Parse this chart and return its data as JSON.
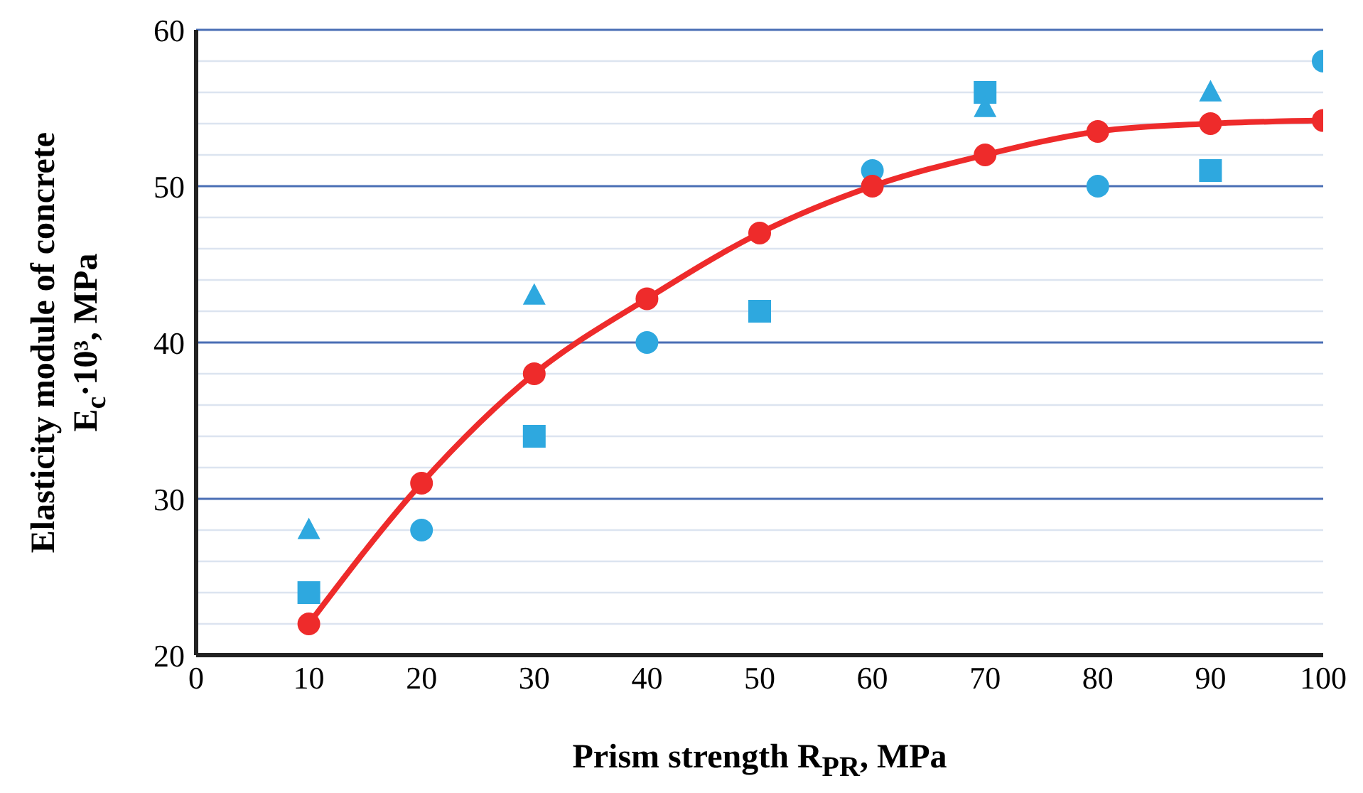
{
  "chart_data": {
    "type": "line",
    "xlabel": "Prism strength R$_{PR}$, MPa",
    "ylabel": "Elasticity module of concrete\nE$_{c}$·10³, MPa",
    "xlim": [
      0,
      100
    ],
    "xticks": [
      0,
      10,
      20,
      30,
      40,
      50,
      60,
      70,
      80,
      90,
      100
    ],
    "ylim": [
      20,
      60
    ],
    "yticks": [
      20,
      {
        "value": 22,
        "label": null
      },
      {
        "value": 24,
        "label": null
      },
      {
        "value": 26,
        "label": null
      },
      {
        "value": 28,
        "label": null
      },
      30,
      {
        "value": 32,
        "label": null
      },
      {
        "value": 34,
        "label": null
      },
      {
        "value": 36,
        "label": null
      },
      {
        "value": 38,
        "label": null
      },
      40,
      {
        "value": 42,
        "label": null
      },
      {
        "value": 44,
        "label": null
      },
      {
        "value": 46,
        "label": null
      },
      {
        "value": 48,
        "label": null
      },
      50,
      {
        "value": 52,
        "label": null
      },
      {
        "value": 54,
        "label": null
      },
      {
        "value": 56,
        "label": null
      },
      {
        "value": 58,
        "label": null
      },
      60
    ],
    "grid": "y",
    "series": [
      {
        "type": "scatter",
        "marker": "circle",
        "color": "#2ea8df",
        "x": [
          20,
          40,
          60,
          80,
          100
        ],
        "values": [
          28,
          40,
          51,
          50,
          58
        ]
      },
      {
        "type": "scatter",
        "marker": "square",
        "color": "#2ea8df",
        "x": [
          10,
          30,
          50,
          70,
          90
        ],
        "values": [
          24,
          34,
          42,
          56,
          51
        ]
      },
      {
        "type": "scatter",
        "marker": "triangle",
        "color": "#2ea8df",
        "x": [
          10,
          30,
          70,
          90
        ],
        "values": [
          28,
          43,
          55,
          56
        ]
      },
      {
        "marker": "circle",
        "line_style": "solid",
        "color": "#ee2b2b",
        "x": [
          10,
          20,
          30,
          40,
          50,
          60,
          70,
          80,
          90,
          100
        ],
        "values": [
          22,
          31,
          38,
          42.8,
          47,
          50,
          52,
          53.5,
          54,
          54.2
        ]
      }
    ]
  }
}
